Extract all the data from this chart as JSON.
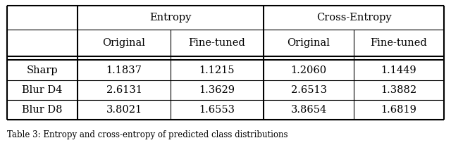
{
  "header1_entropy": "Entropy",
  "header1_cross": "Cross-Entropy",
  "header2": [
    "Original",
    "Fine-tuned",
    "Original",
    "Fine-tuned"
  ],
  "rows": [
    [
      "Sharp",
      "1.1837",
      "1.1215",
      "1.2060",
      "1.1449"
    ],
    [
      "Blur D4",
      "2.6131",
      "1.3629",
      "2.6513",
      "1.3882"
    ],
    [
      "Blur D8",
      "3.8021",
      "1.6553",
      "3.8654",
      "1.6819"
    ]
  ],
  "bg_color": "#ffffff",
  "line_color": "#000000",
  "caption": "Table 3: Entropy and cross-entropy of predicted class distributions",
  "font_size": 10.5
}
